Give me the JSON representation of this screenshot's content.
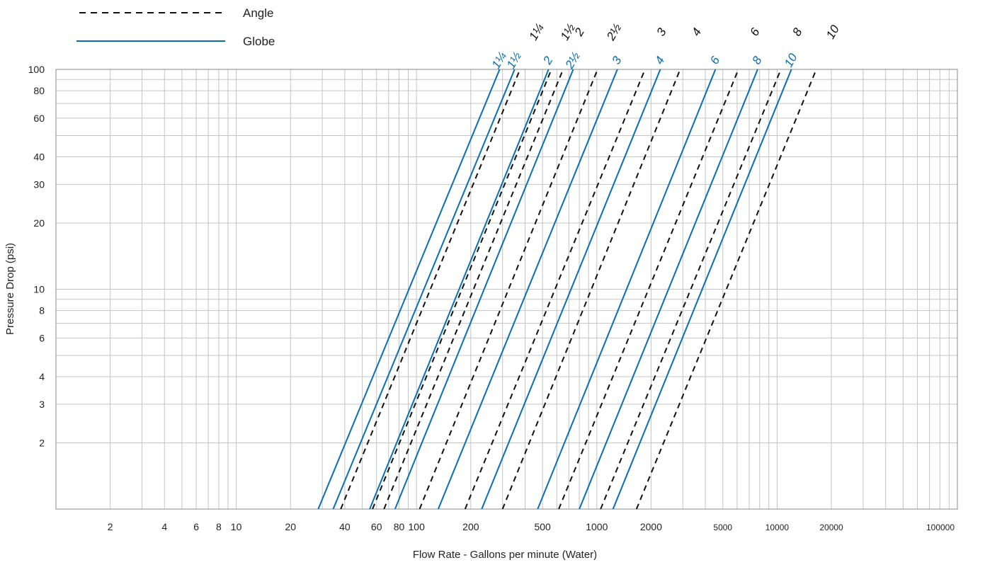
{
  "chart_data": {
    "type": "line",
    "title": "",
    "xlabel": "Flow Rate - Gallons per minute (Water)",
    "ylabel": "Pressure Drop (psi)",
    "x_scale": "log",
    "y_scale": "log",
    "xlim": [
      1,
      100000
    ],
    "ylim": [
      1,
      100
    ],
    "grid": true,
    "legend_position": "top-left",
    "x_tick_labels": [
      {
        "value": 2,
        "label": "2"
      },
      {
        "value": 4,
        "label": "4"
      },
      {
        "value": 6,
        "label": "6"
      },
      {
        "value": 8,
        "label": "8"
      },
      {
        "value": 10,
        "label": "10"
      },
      {
        "value": 20,
        "label": "20"
      },
      {
        "value": 40,
        "label": "40"
      },
      {
        "value": 60,
        "label": "60"
      },
      {
        "value": 80,
        "label": "80"
      },
      {
        "value": 100,
        "label": "100"
      },
      {
        "value": 200,
        "label": "200"
      },
      {
        "value": 500,
        "label": "500"
      },
      {
        "value": 1000,
        "label": "1000"
      },
      {
        "value": 2000,
        "label": "2000"
      },
      {
        "value": 5000,
        "label": "5000",
        "small": true
      },
      {
        "value": 10000,
        "label": "10000",
        "small": true
      },
      {
        "value": 20000,
        "label": "20000",
        "small": true
      },
      {
        "value": 100000,
        "label": "100000",
        "small": true
      }
    ],
    "y_tick_labels": [
      {
        "value": 2,
        "label": "2"
      },
      {
        "value": 3,
        "label": "3"
      },
      {
        "value": 4,
        "label": "4"
      },
      {
        "value": 6,
        "label": "6"
      },
      {
        "value": 8,
        "label": "8"
      },
      {
        "value": 10,
        "label": "10"
      },
      {
        "value": 20,
        "label": "20"
      },
      {
        "value": 30,
        "label": "30"
      },
      {
        "value": 40,
        "label": "40"
      },
      {
        "value": 60,
        "label": "60"
      },
      {
        "value": 80,
        "label": "80"
      },
      {
        "value": 100,
        "label": "100"
      }
    ],
    "legend": [
      {
        "name": "Angle",
        "style": "dashed",
        "color": "#111111"
      },
      {
        "name": "Globe",
        "style": "solid",
        "color": "#0a6eb4"
      }
    ],
    "series": [
      {
        "name": "Globe",
        "label": "1¼",
        "style": "solid",
        "color": "#0a6eb4",
        "x": [
          28.5,
          289
        ],
        "y": [
          1,
          100
        ]
      },
      {
        "name": "Globe",
        "label": "1½",
        "style": "solid",
        "color": "#0a6eb4",
        "x": [
          34.5,
          350
        ],
        "y": [
          1,
          100
        ]
      },
      {
        "name": "Globe",
        "label": "2",
        "style": "solid",
        "color": "#0a6eb4",
        "x": [
          55,
          540
        ],
        "y": [
          1,
          100
        ]
      },
      {
        "name": "Globe",
        "label": "2½",
        "style": "solid",
        "color": "#0a6eb4",
        "x": [
          76,
          740
        ],
        "y": [
          1,
          100
        ]
      },
      {
        "name": "Globe",
        "label": "3",
        "style": "solid",
        "color": "#0a6eb4",
        "x": [
          132,
          1300
        ],
        "y": [
          1,
          100
        ]
      },
      {
        "name": "Globe",
        "label": "4",
        "style": "solid",
        "color": "#0a6eb4",
        "x": [
          230,
          2250
        ],
        "y": [
          1,
          100
        ]
      },
      {
        "name": "Globe",
        "label": "6",
        "style": "solid",
        "color": "#0a6eb4",
        "x": [
          470,
          4550
        ],
        "y": [
          1,
          100
        ]
      },
      {
        "name": "Globe",
        "label": "8",
        "style": "solid",
        "color": "#0a6eb4",
        "x": [
          800,
          7800
        ],
        "y": [
          1,
          100
        ]
      },
      {
        "name": "Globe",
        "label": "10",
        "style": "solid",
        "color": "#0a6eb4",
        "x": [
          1230,
          12000
        ],
        "y": [
          1,
          100
        ]
      },
      {
        "name": "Angle",
        "label": "1¼",
        "style": "dashed",
        "color": "#111111",
        "x": [
          38,
          375
        ],
        "y": [
          1,
          100
        ]
      },
      {
        "name": "Angle",
        "label": "1½",
        "style": "dashed",
        "color": "#111111",
        "x": [
          57,
          560
        ],
        "y": [
          1,
          100
        ]
      },
      {
        "name": "Angle",
        "label": "2",
        "style": "dashed",
        "color": "#111111",
        "x": [
          66,
          650
        ],
        "y": [
          1,
          100
        ]
      },
      {
        "name": "Angle",
        "label": "2½",
        "style": "dashed",
        "color": "#111111",
        "x": [
          104,
          1010
        ],
        "y": [
          1,
          100
        ]
      },
      {
        "name": "Angle",
        "label": "3",
        "style": "dashed",
        "color": "#111111",
        "x": [
          186,
          1850
        ],
        "y": [
          1,
          100
        ]
      },
      {
        "name": "Angle",
        "label": "4",
        "style": "dashed",
        "color": "#111111",
        "x": [
          300,
          2900
        ],
        "y": [
          1,
          100
        ]
      },
      {
        "name": "Angle",
        "label": "6",
        "style": "dashed",
        "color": "#111111",
        "x": [
          615,
          6100
        ],
        "y": [
          1,
          100
        ]
      },
      {
        "name": "Angle",
        "label": "8",
        "style": "dashed",
        "color": "#111111",
        "x": [
          1050,
          10500
        ],
        "y": [
          1,
          100
        ]
      },
      {
        "name": "Angle",
        "label": "10",
        "style": "dashed",
        "color": "#111111",
        "x": [
          1660,
          16500
        ],
        "y": [
          1,
          100
        ]
      }
    ]
  }
}
